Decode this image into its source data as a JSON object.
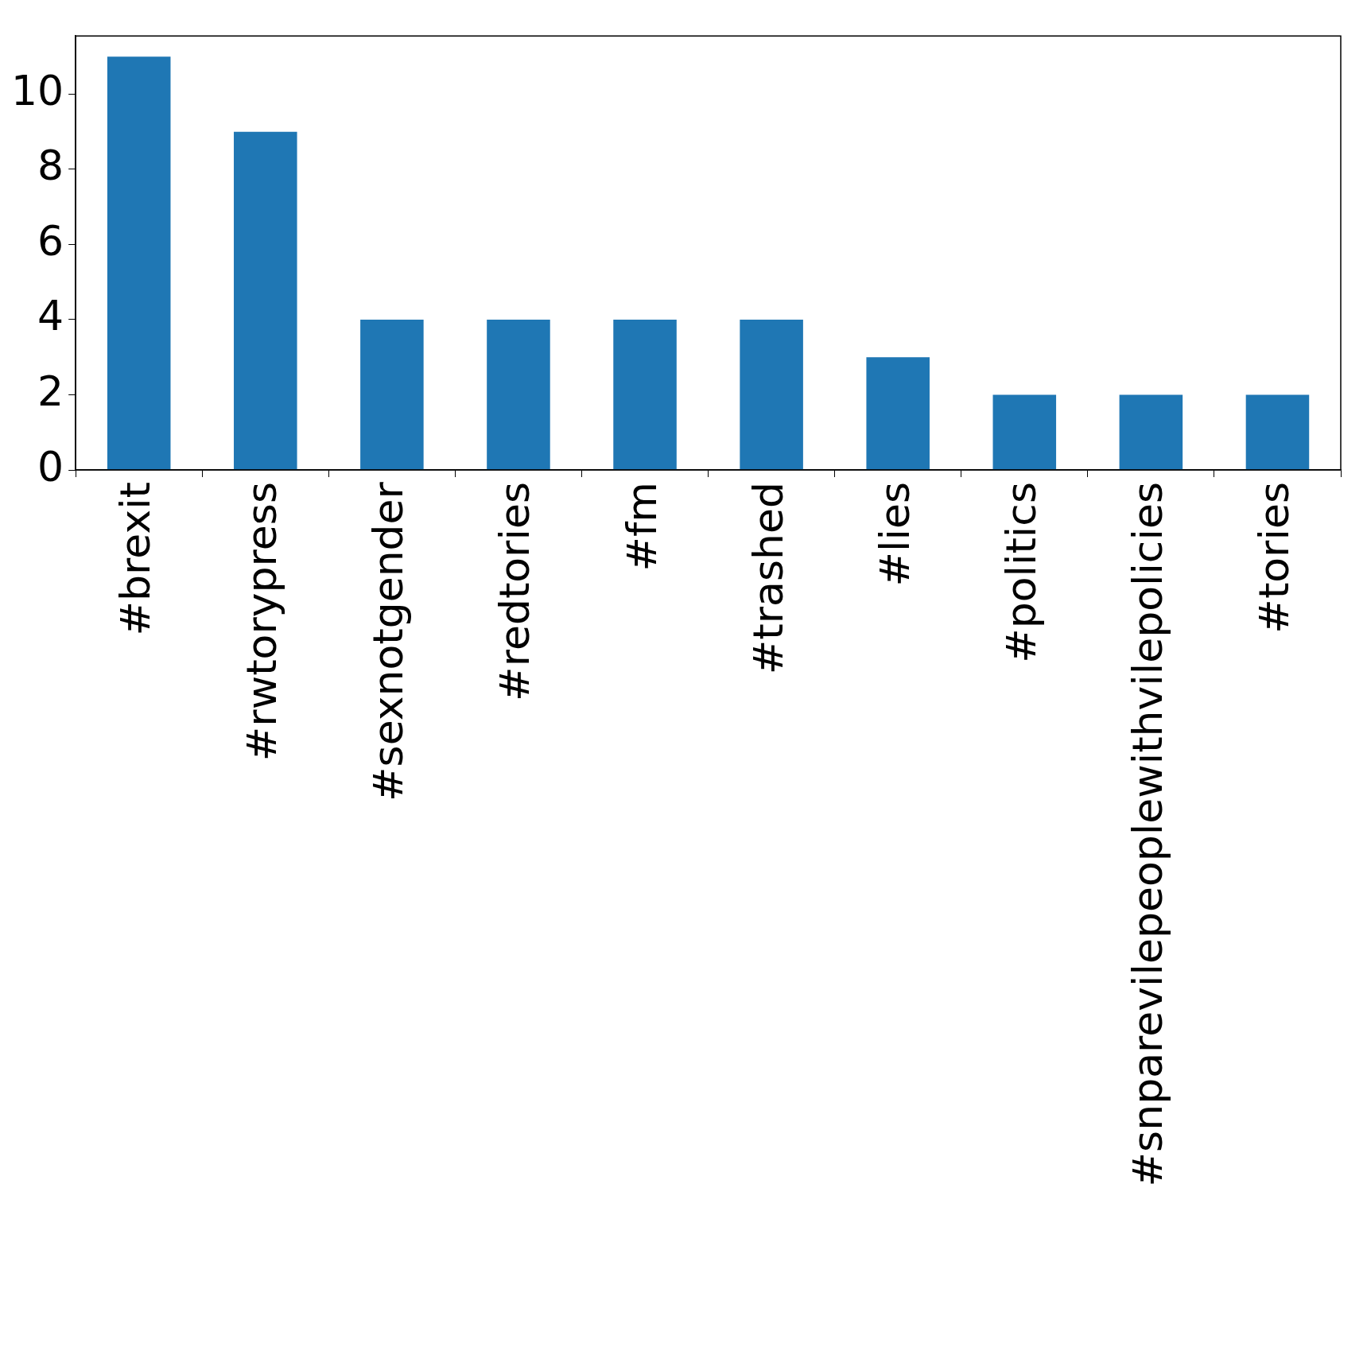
{
  "chart_data": {
    "type": "bar",
    "categories": [
      "#brexit",
      "#rwtorypress",
      "#sexnotgender",
      "#redtories",
      "#fm",
      "#trashed",
      "#lies",
      "#politics",
      "#snparevilepeoplewithvilepolicies",
      "#tories"
    ],
    "values": [
      11,
      9,
      4,
      4,
      4,
      4,
      3,
      2,
      2,
      2
    ],
    "color": "#1f77b4",
    "ylim": [
      0,
      11.55
    ],
    "yticks": [
      0,
      2,
      4,
      6,
      8,
      10
    ],
    "grid": false,
    "legend": false
  }
}
